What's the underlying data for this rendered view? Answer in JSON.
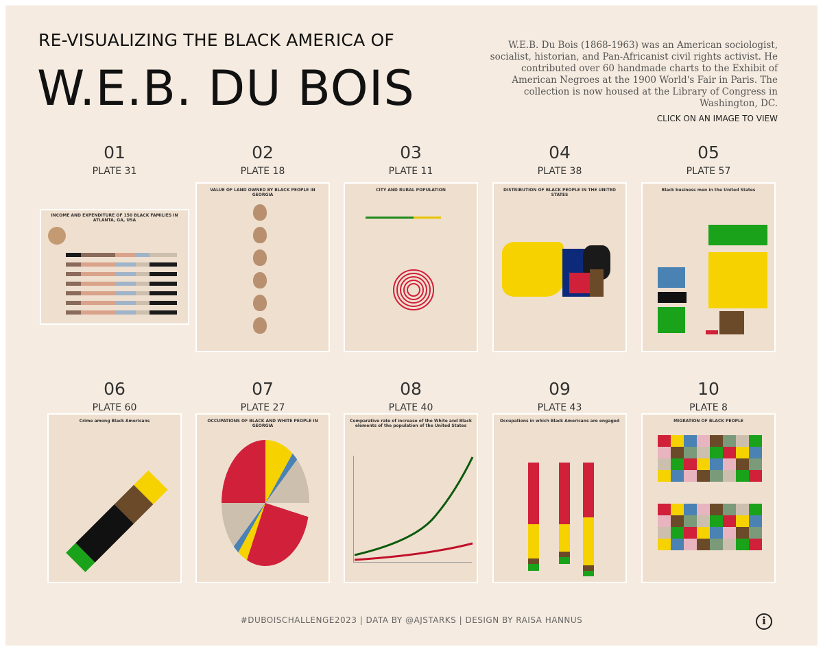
{
  "header": {
    "kicker": "RE-VISUALIZING THE BLACK AMERICA OF",
    "title": "W.E.B. DU BOIS",
    "description": "W.E.B. Du Bois (1868-1963) was an American sociologist, socialist, historian, and Pan-Africanist civil rights activist. He contributed over 60 handmade charts to the Exhibit of American Negroes at the 1900 World's Fair in Paris. The collection is now housed at the Library of Congress in Washington, DC.",
    "instruction": "CLICK ON AN IMAGE TO VIEW"
  },
  "plates": [
    {
      "number": "01",
      "plate": "PLATE 31",
      "thumbnail_title": "INCOME AND EXPENDITURE OF 150 BLACK FAMILIES IN ATLANTA, GA, USA"
    },
    {
      "number": "02",
      "plate": "PLATE 18",
      "thumbnail_title": "VALUE OF LAND OWNED BY BLACK PEOPLE IN GEORGIA"
    },
    {
      "number": "03",
      "plate": "PLATE 11",
      "thumbnail_title": "CITY AND RURAL POPULATION"
    },
    {
      "number": "04",
      "plate": "PLATE 38",
      "thumbnail_title": "DISTRIBUTION OF BLACK PEOPLE IN THE UNITED STATES"
    },
    {
      "number": "05",
      "plate": "PLATE 57",
      "thumbnail_title": "Black business men in the United States"
    },
    {
      "number": "06",
      "plate": "PLATE 60",
      "thumbnail_title": "Crime among Black Americans"
    },
    {
      "number": "07",
      "plate": "PLATE 27",
      "thumbnail_title": "OCCUPATIONS OF BLACK AND WHITE PEOPLE IN GEORGIA"
    },
    {
      "number": "08",
      "plate": "PLATE 40",
      "thumbnail_title": "Comparative rate of increase of the White and Black elements of the population of the United States"
    },
    {
      "number": "09",
      "plate": "PLATE 43",
      "thumbnail_title": "Occupations in which Black Americans are engaged"
    },
    {
      "number": "10",
      "plate": "PLATE 8",
      "thumbnail_title": "MIGRATION OF BLACK PEOPLE"
    }
  ],
  "footer": {
    "credits": "#DUBOISCHALLENGE2023 | DATA BY @AJSTARKS | DESIGN BY RAISA HANNUS"
  }
}
